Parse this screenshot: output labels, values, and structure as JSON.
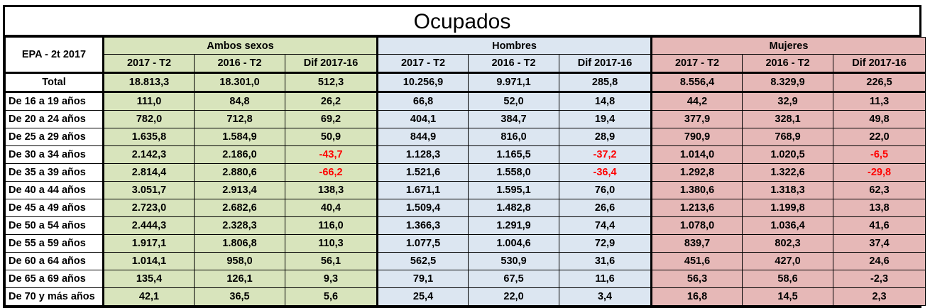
{
  "title": "Ocupados",
  "corner_label": "EPA - 2t 2017",
  "groups": [
    {
      "name": "Ambos sexos",
      "color": "#d8e4bc"
    },
    {
      "name": "Hombres",
      "color": "#dce6f1"
    },
    {
      "name": "Mujeres",
      "color": "#e6b8b7"
    }
  ],
  "subheaders": [
    "2017 - T2",
    "2016 - T2",
    "Dif 2017-16",
    "2017 - T2",
    "2016 - T2",
    "Dif 2017-16",
    "2017 - T2",
    "2016 - T2",
    "Dif 2017-16"
  ],
  "negative_color": "#ff0000",
  "rows": [
    {
      "label": "Total",
      "values": [
        "18.813,3",
        "18.301,0",
        "512,3",
        "10.256,9",
        "9.971,1",
        "285,8",
        "8.556,4",
        "8.329,9",
        "226,5"
      ],
      "neg": [
        false,
        false,
        false,
        false,
        false,
        false,
        false,
        false,
        false
      ]
    },
    {
      "label": "De 16 a 19 años",
      "values": [
        "111,0",
        "84,8",
        "26,2",
        "66,8",
        "52,0",
        "14,8",
        "44,2",
        "32,9",
        "11,3"
      ],
      "neg": [
        false,
        false,
        false,
        false,
        false,
        false,
        false,
        false,
        false
      ]
    },
    {
      "label": "De 20 a 24 años",
      "values": [
        "782,0",
        "712,8",
        "69,2",
        "404,1",
        "384,7",
        "19,4",
        "377,9",
        "328,1",
        "49,8"
      ],
      "neg": [
        false,
        false,
        false,
        false,
        false,
        false,
        false,
        false,
        false
      ]
    },
    {
      "label": "De 25 a 29 años",
      "values": [
        "1.635,8",
        "1.584,9",
        "50,9",
        "844,9",
        "816,0",
        "28,9",
        "790,9",
        "768,9",
        "22,0"
      ],
      "neg": [
        false,
        false,
        false,
        false,
        false,
        false,
        false,
        false,
        false
      ]
    },
    {
      "label": "De 30 a 34 años",
      "values": [
        "2.142,3",
        "2.186,0",
        "-43,7",
        "1.128,3",
        "1.165,5",
        "-37,2",
        "1.014,0",
        "1.020,5",
        "-6,5"
      ],
      "neg": [
        false,
        false,
        true,
        false,
        false,
        true,
        false,
        false,
        true
      ]
    },
    {
      "label": "De 35 a 39 años",
      "values": [
        "2.814,4",
        "2.880,6",
        "-66,2",
        "1.521,6",
        "1.558,0",
        "-36,4",
        "1.292,8",
        "1.322,6",
        "-29,8"
      ],
      "neg": [
        false,
        false,
        true,
        false,
        false,
        true,
        false,
        false,
        true
      ]
    },
    {
      "label": "De 40 a 44 años",
      "values": [
        "3.051,7",
        "2.913,4",
        "138,3",
        "1.671,1",
        "1.595,1",
        "76,0",
        "1.380,6",
        "1.318,3",
        "62,3"
      ],
      "neg": [
        false,
        false,
        false,
        false,
        false,
        false,
        false,
        false,
        false
      ]
    },
    {
      "label": "De 45 a 49 años",
      "values": [
        "2.723,0",
        "2.682,6",
        "40,4",
        "1.509,4",
        "1.482,8",
        "26,6",
        "1.213,6",
        "1.199,8",
        "13,8"
      ],
      "neg": [
        false,
        false,
        false,
        false,
        false,
        false,
        false,
        false,
        false
      ]
    },
    {
      "label": "De 50 a 54 años",
      "values": [
        "2.444,3",
        "2.328,3",
        "116,0",
        "1.366,3",
        "1.291,9",
        "74,4",
        "1.078,0",
        "1.036,4",
        "41,6"
      ],
      "neg": [
        false,
        false,
        false,
        false,
        false,
        false,
        false,
        false,
        false
      ]
    },
    {
      "label": "De 55 a 59 años",
      "values": [
        "1.917,1",
        "1.806,8",
        "110,3",
        "1.077,5",
        "1.004,6",
        "72,9",
        "839,7",
        "802,3",
        "37,4"
      ],
      "neg": [
        false,
        false,
        false,
        false,
        false,
        false,
        false,
        false,
        false
      ]
    },
    {
      "label": "De 60 a 64 años",
      "values": [
        "1.014,1",
        "958,0",
        "56,1",
        "562,5",
        "530,9",
        "31,6",
        "451,6",
        "427,0",
        "24,6"
      ],
      "neg": [
        false,
        false,
        false,
        false,
        false,
        false,
        false,
        false,
        false
      ]
    },
    {
      "label": "De 65 a 69 años",
      "values": [
        "135,4",
        "126,1",
        "9,3",
        "79,1",
        "67,5",
        "11,6",
        "56,3",
        "58,6",
        "-2,3"
      ],
      "neg": [
        false,
        false,
        false,
        false,
        false,
        false,
        false,
        false,
        false
      ]
    },
    {
      "label": "De 70 y más años",
      "values": [
        "42,1",
        "36,5",
        "5,6",
        "25,4",
        "22,0",
        "3,4",
        "16,8",
        "14,5",
        "2,3"
      ],
      "neg": [
        false,
        false,
        false,
        false,
        false,
        false,
        false,
        false,
        false
      ]
    }
  ]
}
